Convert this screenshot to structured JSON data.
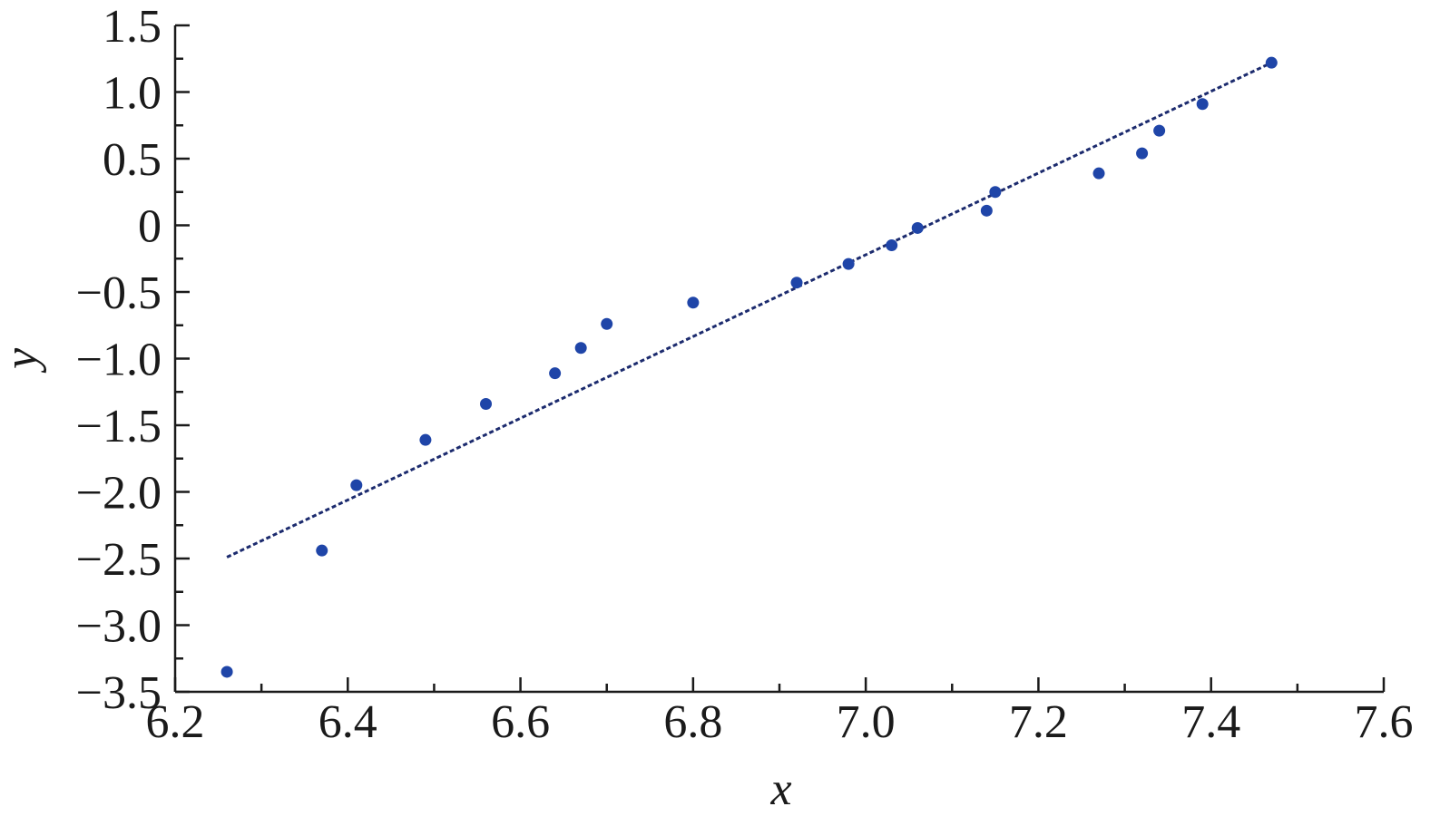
{
  "chart_data": {
    "type": "scatter",
    "title": "",
    "xlabel": "x",
    "ylabel": "y",
    "xlim": [
      6.2,
      7.6
    ],
    "ylim": [
      -3.5,
      1.5
    ],
    "xticks_major": [
      6.2,
      6.4,
      6.6,
      6.8,
      7.0,
      7.2,
      7.4,
      7.6
    ],
    "xtick_labels": [
      "6.2",
      "6.4",
      "6.6",
      "6.8",
      "7.0",
      "7.2",
      "7.4",
      "7.6"
    ],
    "xticks_minor_step": 0.1,
    "yticks_major": [
      1.5,
      1.0,
      0.5,
      0,
      -0.5,
      -1.0,
      -1.5,
      -2.0,
      -2.5,
      -3.0,
      -3.5
    ],
    "ytick_labels": [
      "1.5",
      "1.0",
      "0.5",
      "0",
      "−0.5",
      "−1.0",
      "−1.5",
      "−2.0",
      "−2.5",
      "−3.0",
      "−3.5"
    ],
    "yticks_minor_step": 0.25,
    "grid": false,
    "legend": "none",
    "colors": {
      "points": "#1f45a8",
      "fit_line": "#1c2b6e",
      "axes": "#1a1a1a"
    },
    "series": [
      {
        "type": "scatter",
        "points": [
          {
            "x": 6.26,
            "y": -3.35
          },
          {
            "x": 6.37,
            "y": -2.44
          },
          {
            "x": 6.41,
            "y": -1.95
          },
          {
            "x": 6.49,
            "y": -1.61
          },
          {
            "x": 6.56,
            "y": -1.34
          },
          {
            "x": 6.64,
            "y": -1.11
          },
          {
            "x": 6.67,
            "y": -0.92
          },
          {
            "x": 6.7,
            "y": -0.74
          },
          {
            "x": 6.8,
            "y": -0.58
          },
          {
            "x": 6.92,
            "y": -0.43
          },
          {
            "x": 6.98,
            "y": -0.29
          },
          {
            "x": 7.03,
            "y": -0.15
          },
          {
            "x": 7.06,
            "y": -0.02
          },
          {
            "x": 7.14,
            "y": 0.11
          },
          {
            "x": 7.15,
            "y": 0.25
          },
          {
            "x": 7.27,
            "y": 0.39
          },
          {
            "x": 7.32,
            "y": 0.54
          },
          {
            "x": 7.34,
            "y": 0.71
          },
          {
            "x": 7.39,
            "y": 0.91
          },
          {
            "x": 7.47,
            "y": 1.22
          }
        ]
      },
      {
        "type": "line",
        "style": "dashed",
        "points": [
          {
            "x": 6.26,
            "y": -2.49
          },
          {
            "x": 7.47,
            "y": 1.22
          }
        ]
      }
    ]
  }
}
